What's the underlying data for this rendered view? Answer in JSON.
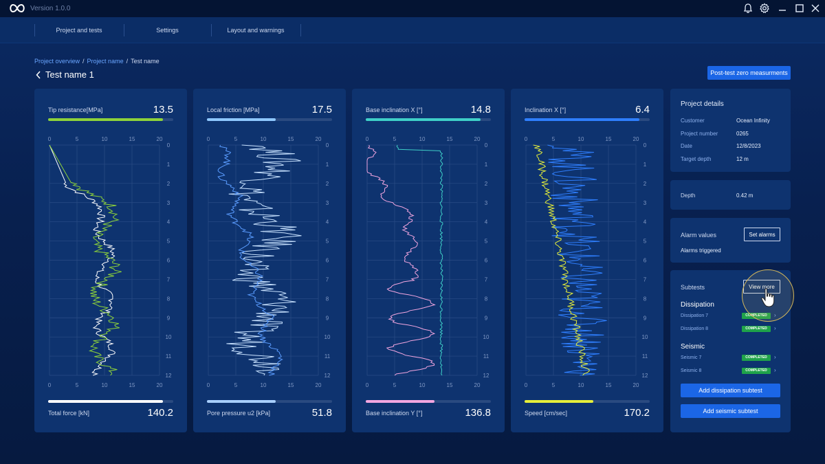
{
  "app": {
    "version": "Version 1.0.0"
  },
  "nav": {
    "items": [
      "Project and tests",
      "Settings",
      "Layout and warnings"
    ]
  },
  "breadcrumb": {
    "items": [
      "Project overview",
      "Project name",
      "Test name"
    ]
  },
  "page": {
    "title": "Test name 1",
    "action_label": "Post-test zero measurments"
  },
  "cards": [
    {
      "top_label": "Tip resistance[MPa]",
      "top_value": "13.5",
      "top_color": "#8ed23a",
      "top_fill": 0.92,
      "bottom_label": "Total force [kN]",
      "bottom_value": "140.2",
      "bottom_color": "#ffffff",
      "bottom_fill": 0.92,
      "series_colors": [
        "#8ed23a",
        "#ffffff"
      ]
    },
    {
      "top_label": "Local friction [MPa]",
      "top_value": "17.5",
      "top_color": "#8fc8ff",
      "top_fill": 0.55,
      "bottom_label": "Pore pressure u2 [kPa]",
      "bottom_value": "51.8",
      "bottom_color": "#a8cfff",
      "bottom_fill": 0.55,
      "series_colors": [
        "#5a9cff",
        "#c8e2ff"
      ]
    },
    {
      "top_label": "Base inclination X [°]",
      "top_value": "14.8",
      "top_color": "#3fd0c8",
      "top_fill": 0.92,
      "bottom_label": "Base inclination Y [°]",
      "bottom_value": "136.8",
      "bottom_color": "#f3a6e0",
      "bottom_fill": 0.55,
      "series_colors": [
        "#f3a6e0",
        "#3fd0c8"
      ]
    },
    {
      "top_label": "Inclination  X [°]",
      "top_value": "6.4",
      "top_color": "#2f7fff",
      "top_fill": 0.92,
      "bottom_label": "Speed [cm/sec]",
      "bottom_value": "170.2",
      "bottom_color": "#e6ef3a",
      "bottom_fill": 0.55,
      "series_colors": [
        "#e6ef3a",
        "#2f7fff"
      ]
    }
  ],
  "axes": {
    "x_ticks": [
      "0",
      "5",
      "10",
      "15",
      "20"
    ],
    "y_ticks": [
      "0",
      "1",
      "2",
      "3",
      "4",
      "5",
      "6",
      "7",
      "8",
      "9",
      "10",
      "11",
      "12"
    ]
  },
  "project_details": {
    "title": "Project details",
    "rows": [
      {
        "k": "Customer",
        "v": "Ocean Infinity"
      },
      {
        "k": "Project number",
        "v": "0265"
      },
      {
        "k": "Date",
        "v": "12/8/2023"
      },
      {
        "k": "Target depth",
        "v": "12 m"
      }
    ]
  },
  "depth": {
    "k": "Depth",
    "v": "0.42 m"
  },
  "alarms": {
    "title": "Alarm values",
    "button": "Set alarms",
    "status": "Alarms triggered"
  },
  "subtests": {
    "title": "Subtests",
    "button": "View more",
    "groups": [
      {
        "name": "Dissipation",
        "items": [
          {
            "label": "Dissipation 7",
            "status": "COMPLETED"
          },
          {
            "label": "Dissipation 8",
            "status": "COMPLETED"
          }
        ]
      },
      {
        "name": "Seismic",
        "items": [
          {
            "label": "Seismic 7",
            "status": "COMPLETED"
          },
          {
            "label": "Seismic 8",
            "status": "COMPLETED"
          }
        ]
      }
    ],
    "add_dissipation": "Add dissipation subtest",
    "add_seismic": "Add seismic subtest"
  }
}
